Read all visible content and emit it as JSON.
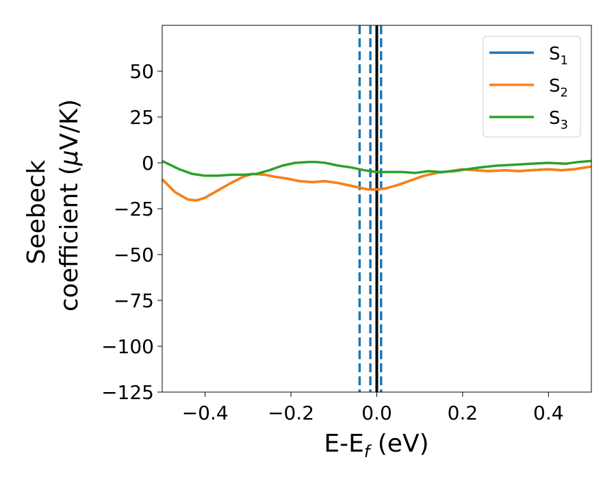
{
  "chart_data": {
    "type": "line",
    "title": "",
    "xlabel": {
      "main": "E-E",
      "sub": "f",
      "suffix": " (eV)"
    },
    "ylabel": {
      "line1": "Seebeck",
      "line2_prefix": "coefficient  (",
      "mu": "μ",
      "line2_suffix": "V/K)"
    },
    "xlim": [
      -0.5,
      0.5
    ],
    "ylim": [
      -125,
      75
    ],
    "xticks": [
      -0.4,
      -0.2,
      0.0,
      0.2,
      0.4
    ],
    "xtick_labels": [
      "−0.4",
      "−0.2",
      "0.0",
      "0.2",
      "0.4"
    ],
    "yticks": [
      50,
      25,
      0,
      -25,
      -50,
      -75,
      -100,
      -125
    ],
    "ytick_labels": [
      "50",
      "25",
      "0",
      "−25",
      "−50",
      "−75",
      "−100",
      "−125"
    ],
    "grid": false,
    "legend_position": "top-right",
    "series": [
      {
        "name": "S",
        "sub": "1",
        "color": "#1f77b4",
        "x": [
          -0.5,
          -0.47,
          -0.44,
          -0.42,
          -0.4,
          -0.37,
          -0.34,
          -0.31,
          -0.29,
          -0.26,
          -0.24,
          -0.21,
          -0.18,
          -0.15,
          -0.12,
          -0.09,
          -0.06,
          -0.04,
          -0.02,
          0.0,
          0.02,
          0.05,
          0.08,
          0.11,
          0.14,
          0.17,
          0.2,
          0.23,
          0.26,
          0.3,
          0.33,
          0.36,
          0.4,
          0.43,
          0.46,
          0.5
        ],
        "y": [
          -9,
          -16,
          -20,
          -20.5,
          -19,
          -15,
          -11,
          -7.5,
          -6,
          -6.5,
          -7.5,
          -8.5,
          -10,
          -10.5,
          -10,
          -11,
          -12.5,
          -13.5,
          -14.5,
          -14.5,
          -14,
          -12,
          -9.5,
          -7,
          -5.5,
          -4.5,
          -3.5,
          -4,
          -4.5,
          -4,
          -4.5,
          -4,
          -3.5,
          -4,
          -3.5,
          -2
        ]
      },
      {
        "name": "S",
        "sub": "2",
        "color": "#ff7f0e",
        "x": [
          -0.5,
          -0.47,
          -0.44,
          -0.42,
          -0.4,
          -0.37,
          -0.34,
          -0.31,
          -0.29,
          -0.26,
          -0.24,
          -0.21,
          -0.18,
          -0.15,
          -0.12,
          -0.09,
          -0.06,
          -0.04,
          -0.02,
          0.0,
          0.02,
          0.05,
          0.08,
          0.11,
          0.14,
          0.17,
          0.2,
          0.23,
          0.26,
          0.3,
          0.33,
          0.36,
          0.4,
          0.43,
          0.46,
          0.5
        ],
        "y": [
          -9,
          -16,
          -20,
          -20.5,
          -19,
          -15,
          -11,
          -7.5,
          -6,
          -6.5,
          -7.5,
          -8.5,
          -10,
          -10.5,
          -10,
          -11,
          -12.5,
          -13.5,
          -14.5,
          -14.5,
          -14,
          -12,
          -9.5,
          -7,
          -5.5,
          -4.5,
          -3.5,
          -4,
          -4.5,
          -4,
          -4.5,
          -4,
          -3.5,
          -4,
          -3.5,
          -2
        ]
      },
      {
        "name": "S",
        "sub": "3",
        "color": "#2ca02c",
        "x": [
          -0.5,
          -0.46,
          -0.43,
          -0.4,
          -0.37,
          -0.34,
          -0.31,
          -0.28,
          -0.25,
          -0.22,
          -0.19,
          -0.16,
          -0.14,
          -0.12,
          -0.09,
          -0.06,
          -0.03,
          0.0,
          0.03,
          0.06,
          0.09,
          0.12,
          0.15,
          0.18,
          0.21,
          0.24,
          0.28,
          0.32,
          0.36,
          0.4,
          0.44,
          0.47,
          0.5
        ],
        "y": [
          1,
          -3.5,
          -6,
          -7,
          -7,
          -6.5,
          -6.5,
          -6,
          -4,
          -1.5,
          0,
          0.5,
          0.5,
          0,
          -1.5,
          -2.5,
          -4,
          -5,
          -5,
          -5,
          -5.5,
          -4.5,
          -5,
          -4.5,
          -3.5,
          -2.5,
          -1.5,
          -1,
          -0.5,
          0,
          -0.5,
          0.5,
          1
        ]
      }
    ],
    "vlines": [
      {
        "x": -0.04,
        "style": "dashed",
        "color": "#1f77b4"
      },
      {
        "x": -0.015,
        "style": "dashed",
        "color": "#1f77b4"
      },
      {
        "x": 0.01,
        "style": "dashed",
        "color": "#1f77b4"
      },
      {
        "x": 0.0,
        "style": "solid",
        "color": "#000000"
      }
    ]
  }
}
